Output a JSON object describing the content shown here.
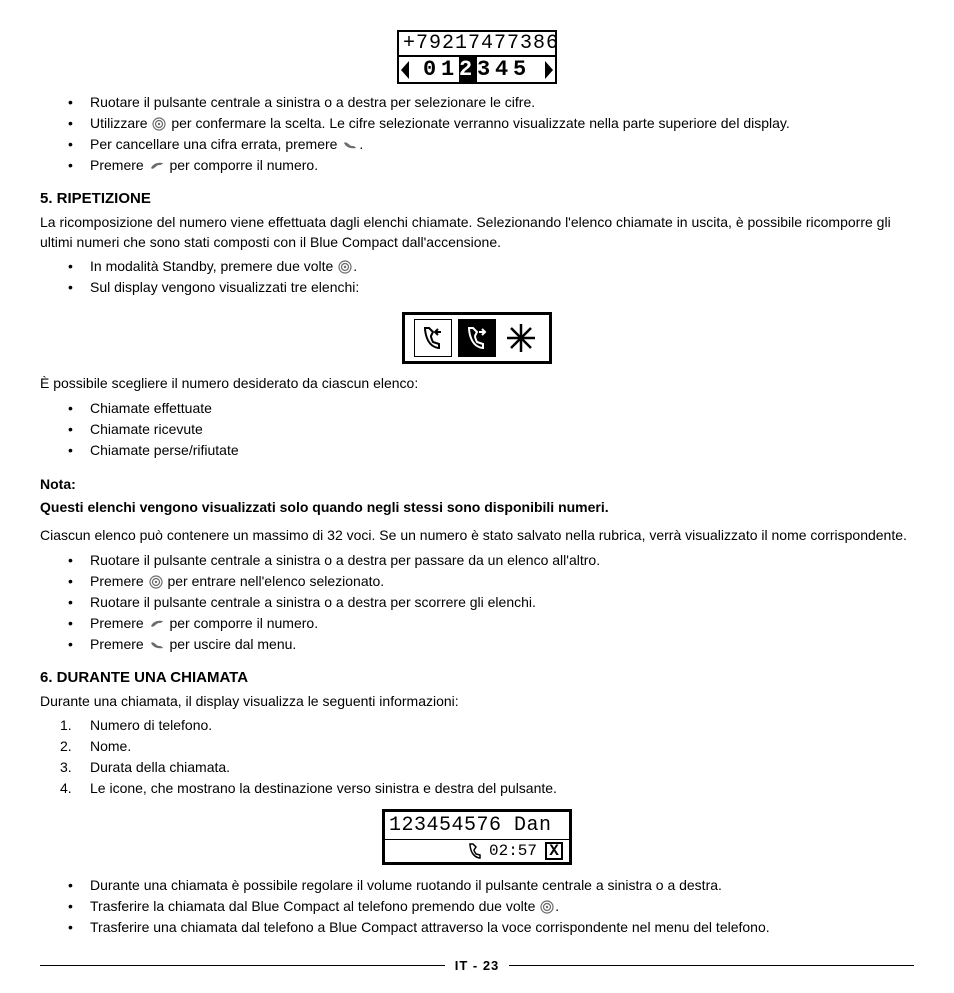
{
  "display1": {
    "top": "+79217477386",
    "digits": [
      "0",
      "1",
      "2",
      "3",
      "4",
      "5"
    ],
    "selected_index": 2
  },
  "bullets1": [
    "Ruotare il pulsante centrale a sinistra o a destra per selezionare le cifre.",
    "Utilizzare __CIRCLE__ per confermare la scelta. Le cifre selezionate verranno visualizzate nella parte superiore del display.",
    "Per cancellare una cifra errata, premere __CANCEL__.",
    "Premere __CALL__ per comporre il numero."
  ],
  "section5": {
    "title": "5. RIPETIZIONE",
    "intro": "La ricomposizione del numero viene effettuata dagli elenchi chiamate. Selezionando l'elenco chiamate in uscita, è possibile ricomporre gli ultimi numeri che sono stati composti con il Blue Compact dall'accensione.",
    "bullets_a": [
      "In modalità Standby, premere due volte __CIRCLE__.",
      "Sul display vengono visualizzati tre elenchi:"
    ],
    "choose_text": "È possibile scegliere il numero desiderato da ciascun elenco:",
    "bullets_b": [
      "Chiamate effettuate",
      "Chiamate ricevute",
      "Chiamate perse/rifiutate"
    ],
    "note_label": "Nota:",
    "note_text": "Questi elenchi vengono visualizzati solo quando negli stessi sono disponibili numeri.",
    "para2": "Ciascun elenco può contenere un massimo di 32 voci. Se un numero è stato salvato nella rubrica, verrà visualizzato il nome corrispondente.",
    "bullets_c": [
      "Ruotare il pulsante centrale a sinistra o a destra per passare da un elenco all'altro.",
      "Premere __CIRCLE__ per entrare nell'elenco selezionato.",
      "Ruotare il pulsante centrale a sinistra o a destra per scorrere gli elenchi.",
      "Premere __CALL__ per comporre il numero.",
      "Premere __CANCEL__ per uscire dal menu."
    ]
  },
  "section6": {
    "title": "6. DURANTE UNA CHIAMATA",
    "intro": "Durante una chiamata, il display visualizza le seguenti informazioni:",
    "items": [
      "Numero di telefono.",
      "Nome.",
      "Durata della chiamata.",
      "Le icone, che mostrano la destinazione verso sinistra e destra del pulsante."
    ],
    "display": {
      "top": "123454576 Dan",
      "time": "02:57"
    },
    "bullets": [
      "Durante una chiamata è possibile regolare il volume ruotando il pulsante centrale a sinistra o a destra.",
      "Trasferire la chiamata dal Blue Compact al telefono premendo due volte __CIRCLE__.",
      "Trasferire una chiamata dal telefono a Blue Compact attraverso la voce corrispondente nel menu del telefono."
    ]
  },
  "footer": "IT - 23"
}
